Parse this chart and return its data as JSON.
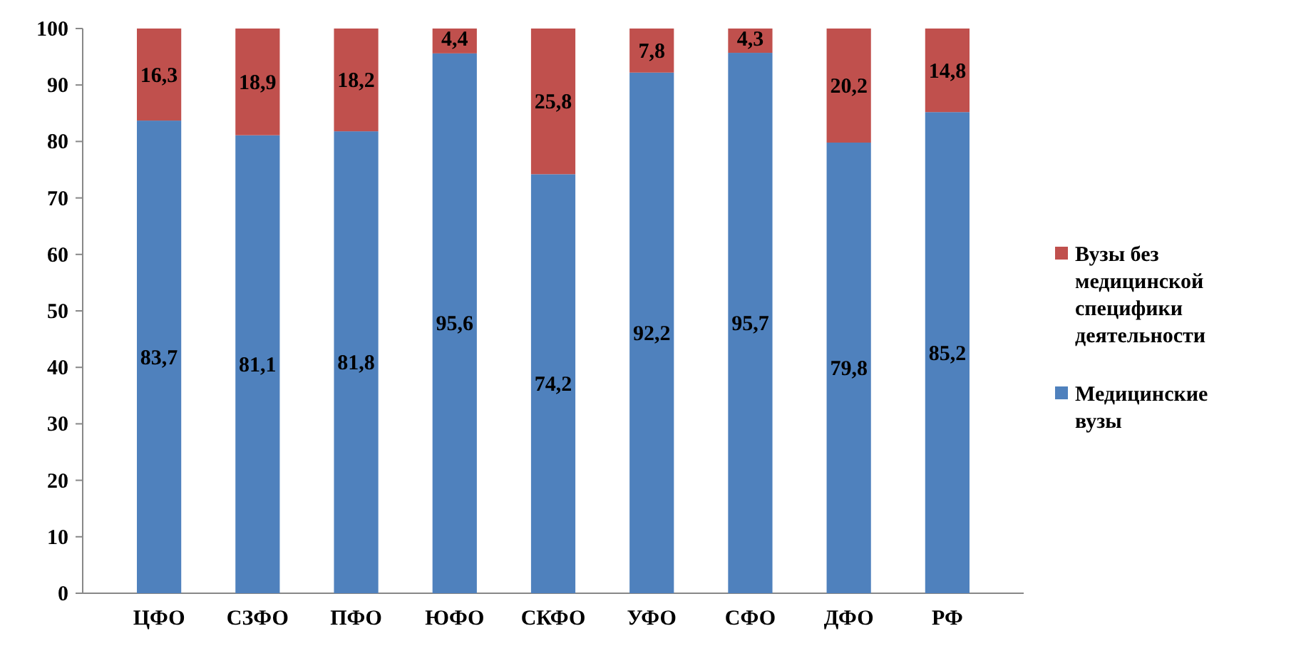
{
  "chart_data": {
    "type": "bar",
    "stacked": true,
    "categories": [
      "ЦФО",
      "СЗФО",
      "ПФО",
      "ЮФО",
      "СКФО",
      "УФО",
      "СФО",
      "ДФО",
      "РФ"
    ],
    "series": [
      {
        "name": "Медицинские вузы",
        "color": "#4f81bd",
        "values": [
          83.7,
          81.1,
          81.8,
          95.6,
          74.2,
          92.2,
          95.7,
          79.8,
          85.2
        ],
        "value_labels": [
          "83,7",
          "81,1",
          "81,8",
          "95,6",
          "74,2",
          "92,2",
          "95,7",
          "79,8",
          "85,2"
        ]
      },
      {
        "name": "Вузы без медицинской специфики деятельности",
        "color": "#c0504d",
        "values": [
          16.3,
          18.9,
          18.2,
          4.4,
          25.8,
          7.8,
          4.3,
          20.2,
          14.8
        ],
        "value_labels": [
          "16,3",
          "18,9",
          "18,2",
          "4,4",
          "25,8",
          "7,8",
          "4,3",
          "20,2",
          "14,8"
        ]
      }
    ],
    "ylim": [
      0,
      100
    ],
    "yticks": [
      0,
      10,
      20,
      30,
      40,
      50,
      60,
      70,
      80,
      90,
      100
    ],
    "grid": false,
    "legend": "right"
  }
}
